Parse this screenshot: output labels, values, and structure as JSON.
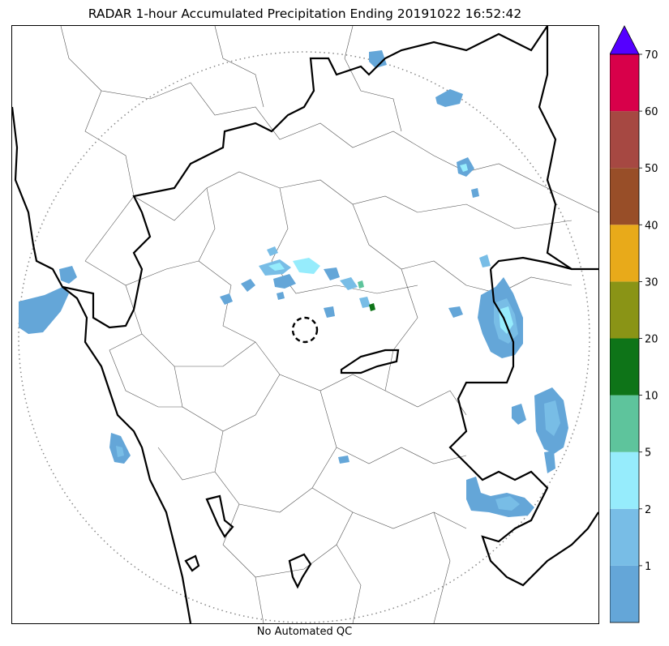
{
  "title": "RADAR 1-hour Accumulated Precipitation Ending 20191022 16:52:42",
  "footer_text": "No Automated QC",
  "colorbar": {
    "levels": [
      {
        "from": 0,
        "to": 1,
        "color": "#64a6d8"
      },
      {
        "from": 1,
        "to": 2,
        "color": "#78bde6"
      },
      {
        "from": 2,
        "to": 5,
        "color": "#96ecfc"
      },
      {
        "from": 5,
        "to": 10,
        "color": "#5ec49c"
      },
      {
        "from": 10,
        "to": 20,
        "color": "#0e7418"
      },
      {
        "from": 20,
        "to": 30,
        "color": "#8a9416"
      },
      {
        "from": 30,
        "to": 40,
        "color": "#e8aa1a"
      },
      {
        "from": 40,
        "to": 50,
        "color": "#984e28"
      },
      {
        "from": 50,
        "to": 60,
        "color": "#a64842"
      },
      {
        "from": 60,
        "to": 70,
        "color": "#d8004a"
      }
    ],
    "overflow_color": "#5500ff",
    "tick_labels": [
      "1",
      "2",
      "5",
      "10",
      "20",
      "30",
      "40",
      "50",
      "60",
      "70"
    ]
  },
  "map": {
    "range_ring": "dotted",
    "radar_site_marker": "dashed-circle",
    "boundary_colors": {
      "major": "#000000",
      "minor": "#555555",
      "ring": "#888888"
    }
  }
}
